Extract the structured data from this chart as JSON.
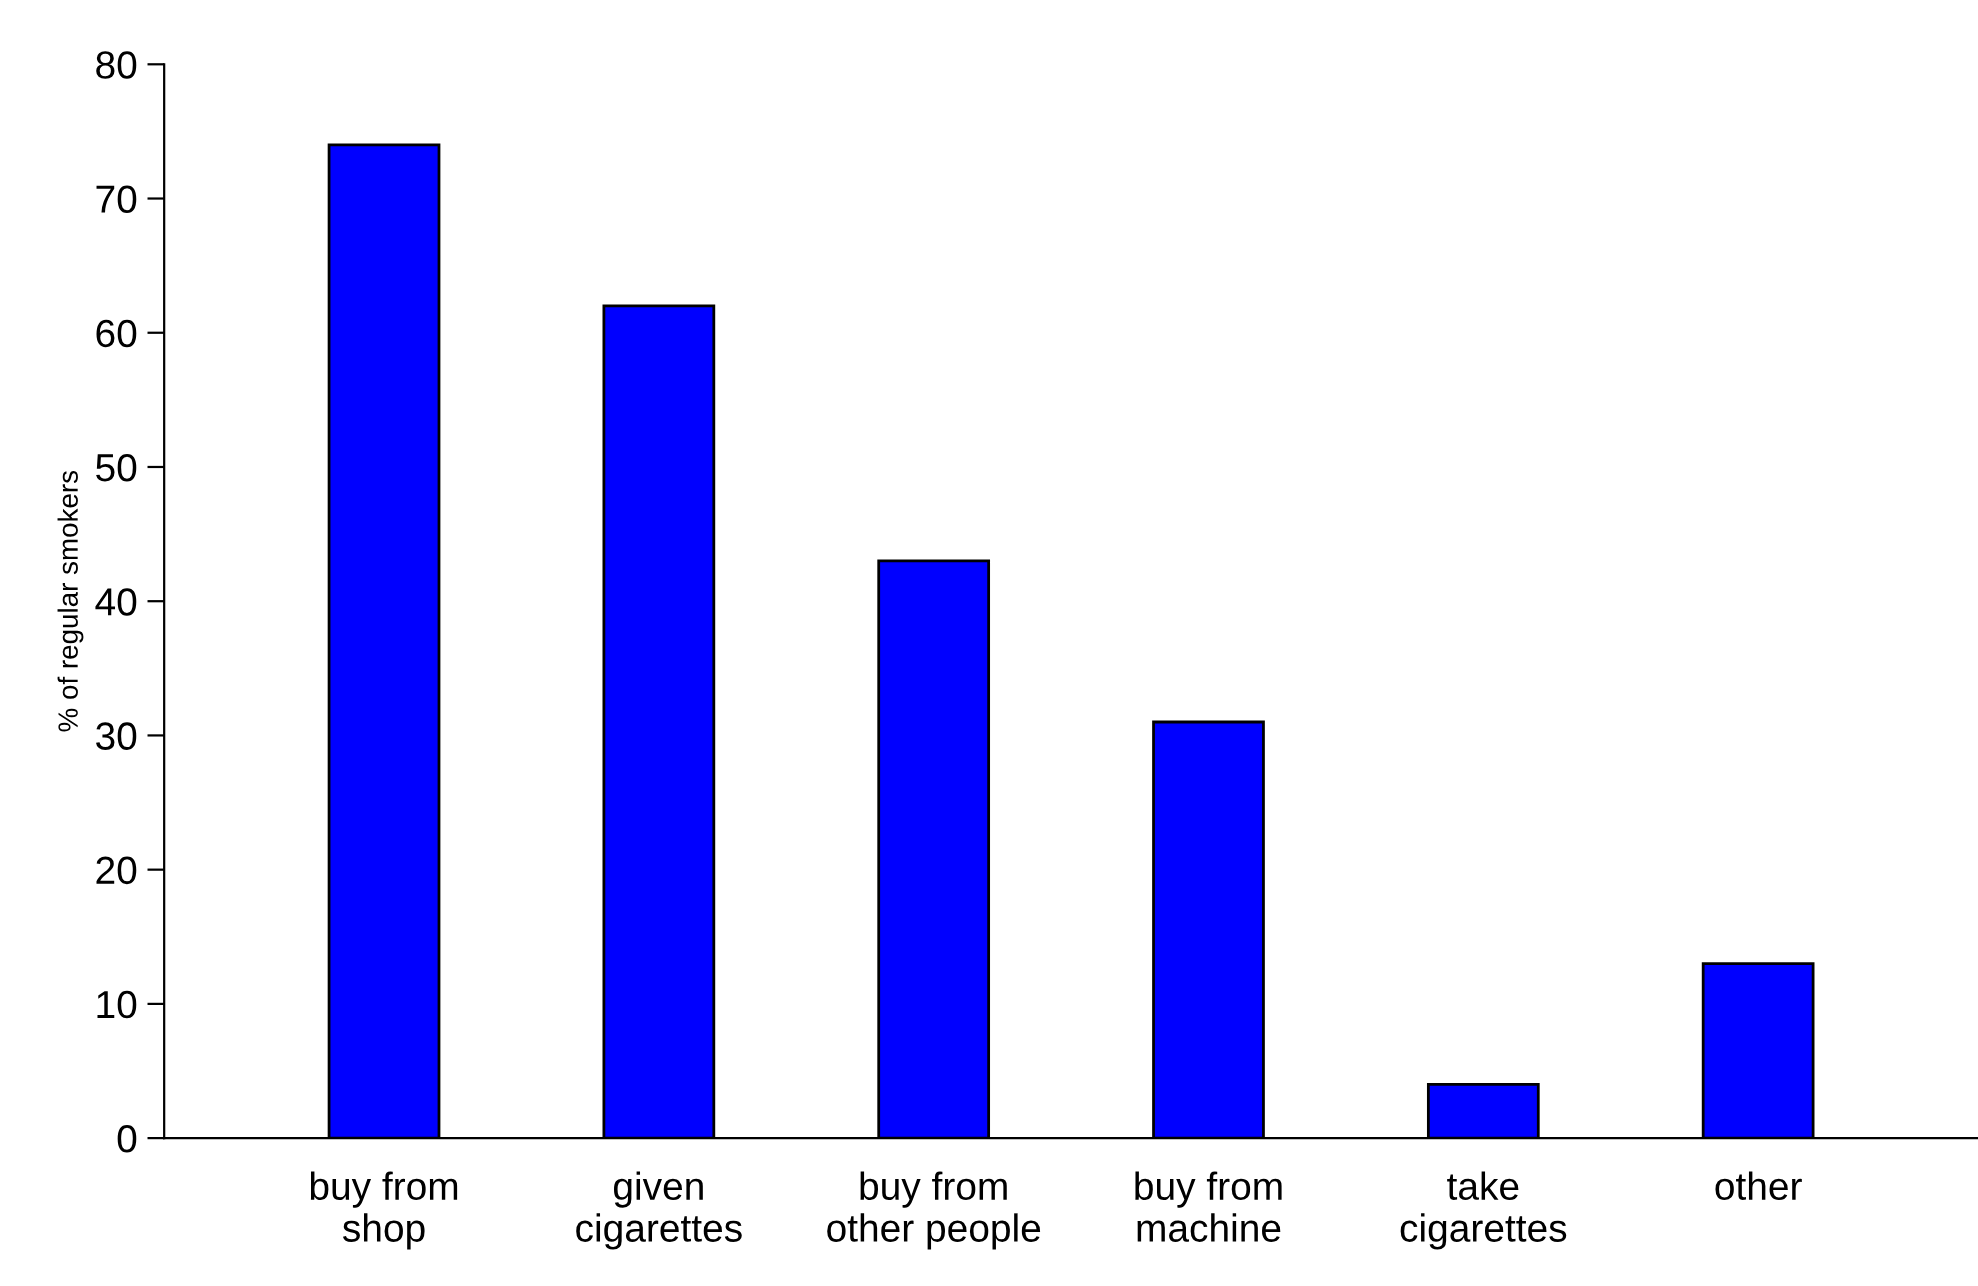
{
  "chart_data": {
    "type": "bar",
    "ylabel": "% of regular smokers",
    "categories": [
      "buy from\nshop",
      "given\ncigarettes",
      "buy from\nother people",
      "buy from\nmachine",
      "take\ncigarettes",
      "other"
    ],
    "values": [
      74,
      62,
      43,
      31,
      4,
      13
    ],
    "color": "#0000ff",
    "ylim": [
      0,
      80
    ],
    "yticks": [
      0,
      10,
      20,
      30,
      40,
      50,
      60,
      70,
      80
    ],
    "grid": false,
    "legend": false
  }
}
